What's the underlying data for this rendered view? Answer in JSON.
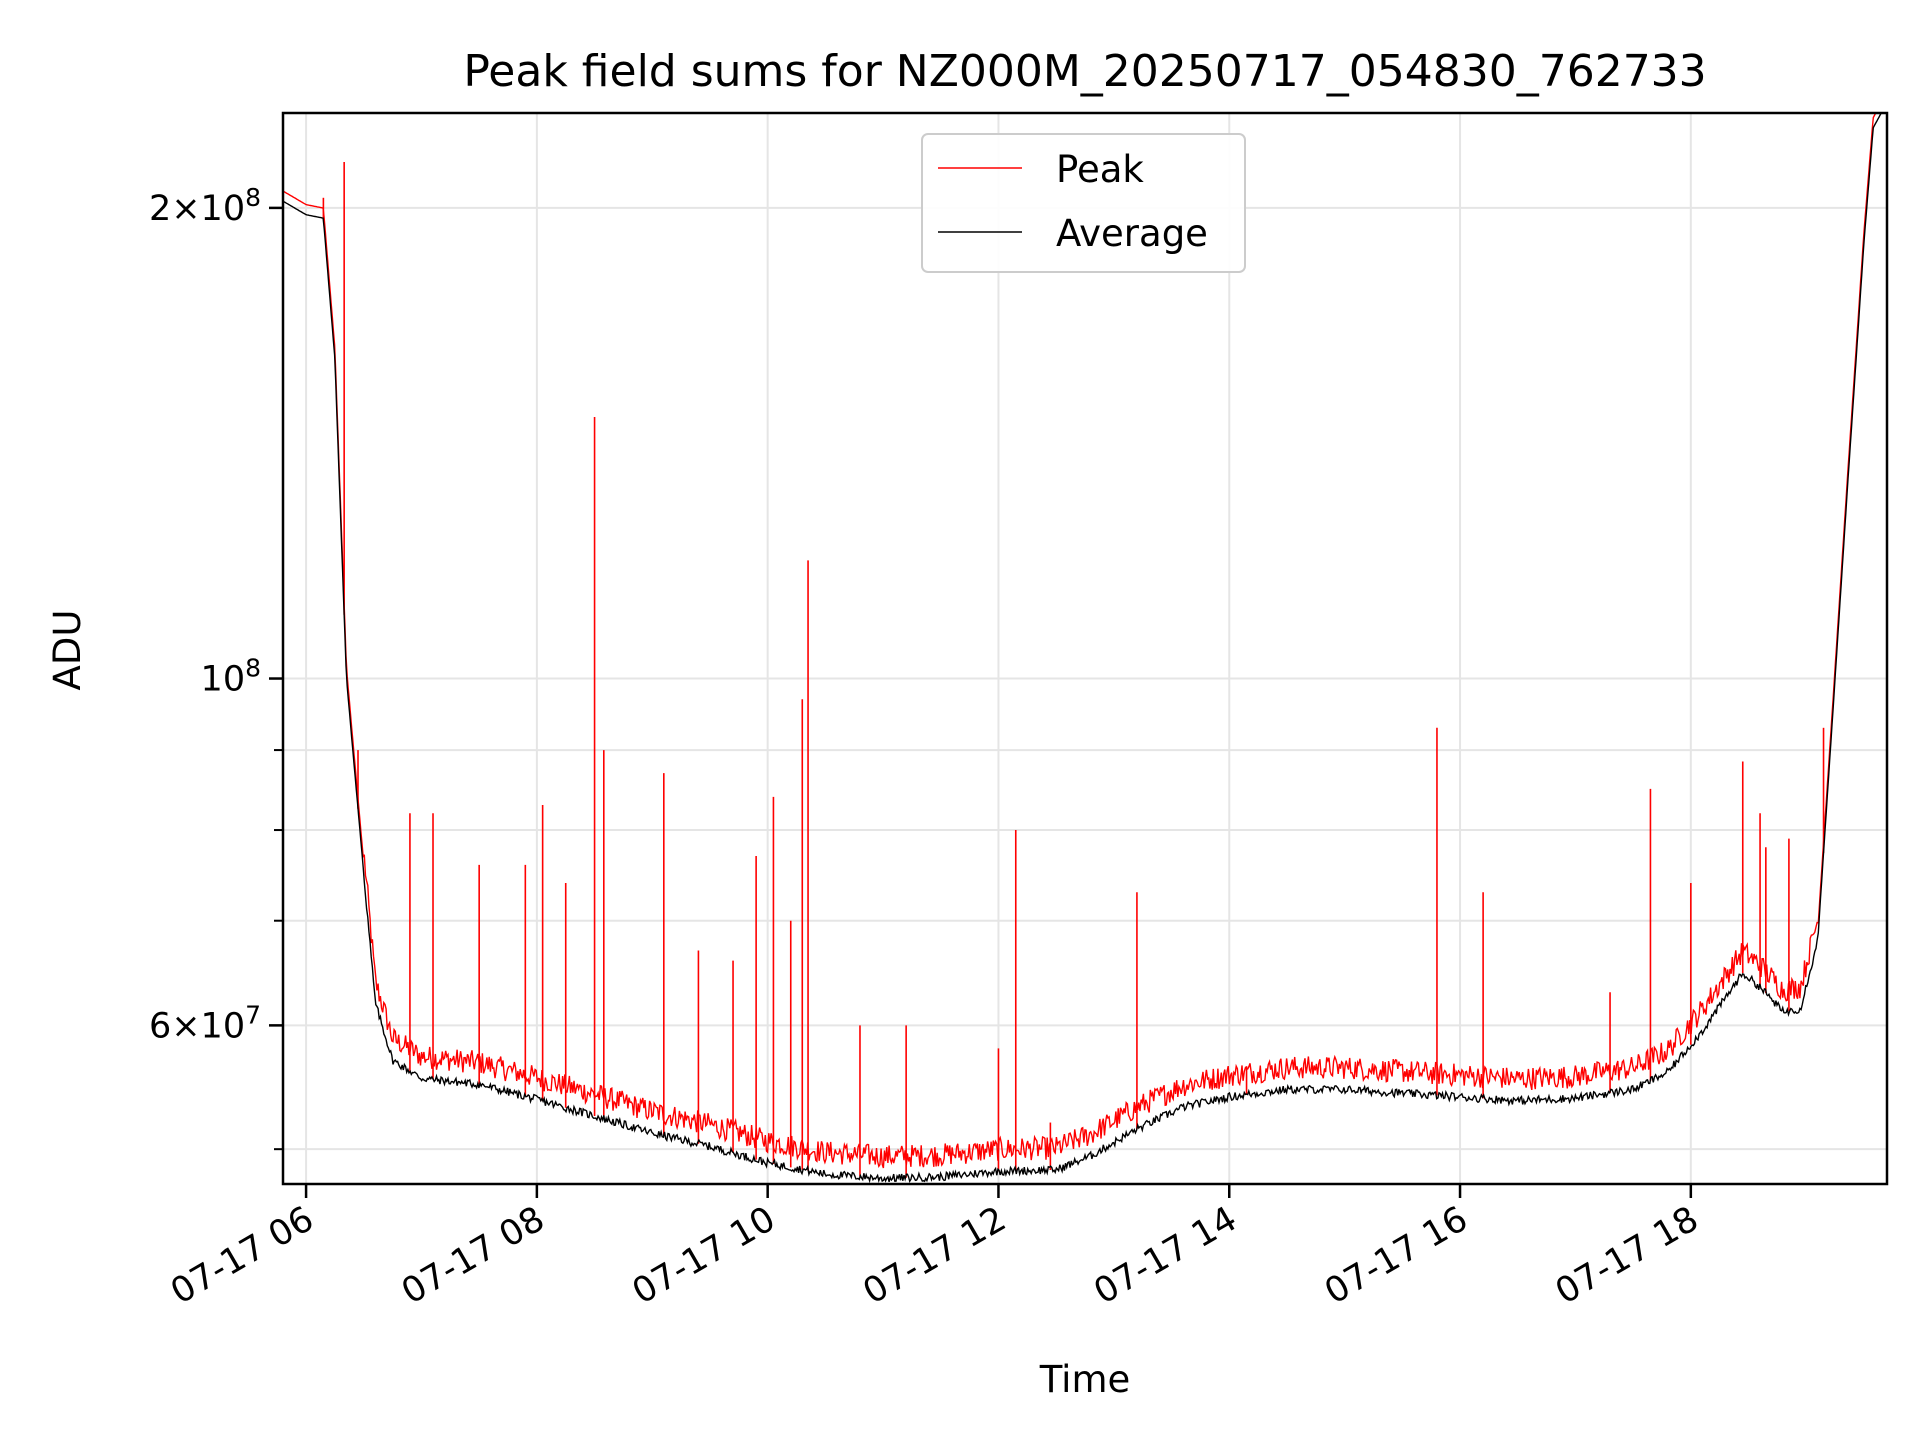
{
  "chart_data": {
    "type": "line",
    "title": "Peak field sums for NZ000M_20250717_054830_762733",
    "xlabel": "Time",
    "ylabel": "ADU",
    "x_unit": "hours (07-17)",
    "xlim": [
      5.8,
      19.7
    ],
    "ylim": [
      47500000,
      230000000
    ],
    "y_scale": "log",
    "grid": true,
    "legend_position": "top-center",
    "x_ticks": [
      {
        "value": 6,
        "label": "07-17 06"
      },
      {
        "value": 8,
        "label": "07-17 08"
      },
      {
        "value": 10,
        "label": "07-17 10"
      },
      {
        "value": 12,
        "label": "07-17 12"
      },
      {
        "value": 14,
        "label": "07-17 14"
      },
      {
        "value": 16,
        "label": "07-17 16"
      },
      {
        "value": 18,
        "label": "07-17 18"
      }
    ],
    "y_ticks": [
      {
        "value": 200000000,
        "mantissa": "2",
        "exponent": "8"
      },
      {
        "value": 100000000,
        "mantissa": "",
        "exponent": "8"
      },
      {
        "value": 60000000,
        "mantissa": "6",
        "exponent": "7"
      }
    ],
    "series": [
      {
        "name": "Average",
        "color": "#000000",
        "points": [
          [
            5.8,
            202000000
          ],
          [
            6.0,
            198000000
          ],
          [
            6.15,
            197000000
          ],
          [
            6.25,
            160000000
          ],
          [
            6.35,
            100000000
          ],
          [
            6.5,
            75000000
          ],
          [
            6.6,
            62000000
          ],
          [
            6.75,
            57000000
          ],
          [
            7.0,
            55500000
          ],
          [
            7.5,
            55000000
          ],
          [
            8.0,
            53800000
          ],
          [
            8.5,
            52500000
          ],
          [
            9.0,
            51200000
          ],
          [
            9.5,
            50200000
          ],
          [
            10.0,
            49000000
          ],
          [
            10.5,
            48200000
          ],
          [
            11.0,
            47900000
          ],
          [
            11.5,
            48000000
          ],
          [
            12.0,
            48400000
          ],
          [
            12.5,
            48500000
          ],
          [
            12.8,
            49500000
          ],
          [
            13.2,
            51500000
          ],
          [
            13.6,
            53200000
          ],
          [
            14.0,
            54000000
          ],
          [
            14.5,
            54600000
          ],
          [
            15.0,
            54600000
          ],
          [
            15.5,
            54300000
          ],
          [
            16.0,
            54000000
          ],
          [
            16.5,
            53700000
          ],
          [
            17.0,
            53900000
          ],
          [
            17.5,
            54600000
          ],
          [
            17.8,
            56000000
          ],
          [
            18.1,
            59500000
          ],
          [
            18.3,
            62500000
          ],
          [
            18.45,
            64800000
          ],
          [
            18.6,
            63500000
          ],
          [
            18.8,
            61200000
          ],
          [
            18.95,
            61500000
          ],
          [
            19.1,
            68000000
          ],
          [
            19.25,
            100000000
          ],
          [
            19.35,
            130000000
          ],
          [
            19.5,
            190000000
          ],
          [
            19.58,
            225000000
          ],
          [
            19.65,
            230000000
          ],
          [
            19.7,
            230000000
          ]
        ]
      },
      {
        "name": "Peak",
        "color": "#ff0000",
        "baseline_offset_fraction": 0.015,
        "spikes": [
          [
            6.15,
            203000000
          ],
          [
            6.33,
            214000000
          ],
          [
            6.45,
            90000000
          ],
          [
            6.9,
            82000000
          ],
          [
            7.1,
            82000000
          ],
          [
            7.5,
            76000000
          ],
          [
            7.9,
            76000000
          ],
          [
            8.05,
            83000000
          ],
          [
            8.25,
            74000000
          ],
          [
            8.5,
            147000000
          ],
          [
            8.58,
            90000000
          ],
          [
            9.1,
            87000000
          ],
          [
            9.4,
            67000000
          ],
          [
            9.7,
            66000000
          ],
          [
            9.9,
            77000000
          ],
          [
            10.05,
            84000000
          ],
          [
            10.2,
            70000000
          ],
          [
            10.3,
            97000000
          ],
          [
            10.35,
            119000000
          ],
          [
            10.8,
            60000000
          ],
          [
            11.2,
            60000000
          ],
          [
            12.0,
            58000000
          ],
          [
            12.15,
            80000000
          ],
          [
            12.45,
            52000000
          ],
          [
            13.2,
            73000000
          ],
          [
            14.15,
            56500000
          ],
          [
            15.8,
            93000000
          ],
          [
            16.2,
            73000000
          ],
          [
            17.3,
            63000000
          ],
          [
            17.65,
            85000000
          ],
          [
            18.0,
            74000000
          ],
          [
            18.45,
            88500000
          ],
          [
            18.6,
            82000000
          ],
          [
            18.65,
            78000000
          ],
          [
            18.85,
            79000000
          ],
          [
            19.15,
            93000000
          ]
        ]
      }
    ]
  }
}
